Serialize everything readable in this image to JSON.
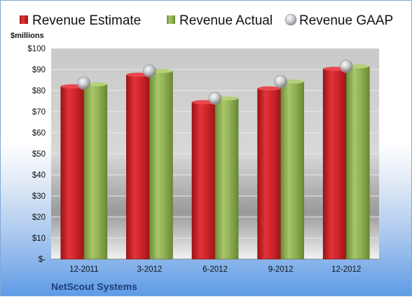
{
  "chart_data": {
    "type": "bar",
    "ylabel": "$millions",
    "ylim": [
      0,
      100
    ],
    "yticks": [
      "$-",
      "$10",
      "$20",
      "$30",
      "$40",
      "$50",
      "$60",
      "$70",
      "$80",
      "$90",
      "$100"
    ],
    "categories": [
      "12-2011",
      "3-2012",
      "6-2012",
      "9-2012",
      "12-2012"
    ],
    "series": [
      {
        "name": "Revenue Estimate",
        "type": "bar",
        "values": [
          82,
          87.5,
          74.5,
          81,
          90.3
        ]
      },
      {
        "name": "Revenue Actual",
        "type": "bar",
        "values": [
          83,
          89.3,
          76.3,
          84.3,
          91.5
        ]
      },
      {
        "name": "Revenue GAAP",
        "type": "scatter",
        "values": [
          83.5,
          89.3,
          76.3,
          84.3,
          91.5
        ]
      }
    ],
    "legend_position": "top",
    "grid": true,
    "colors": {
      "estimate": "#cc1f24",
      "actual": "#8db04f",
      "gaap": "#b9bcc4"
    }
  },
  "footer": {
    "company": "NetScout Systems"
  }
}
